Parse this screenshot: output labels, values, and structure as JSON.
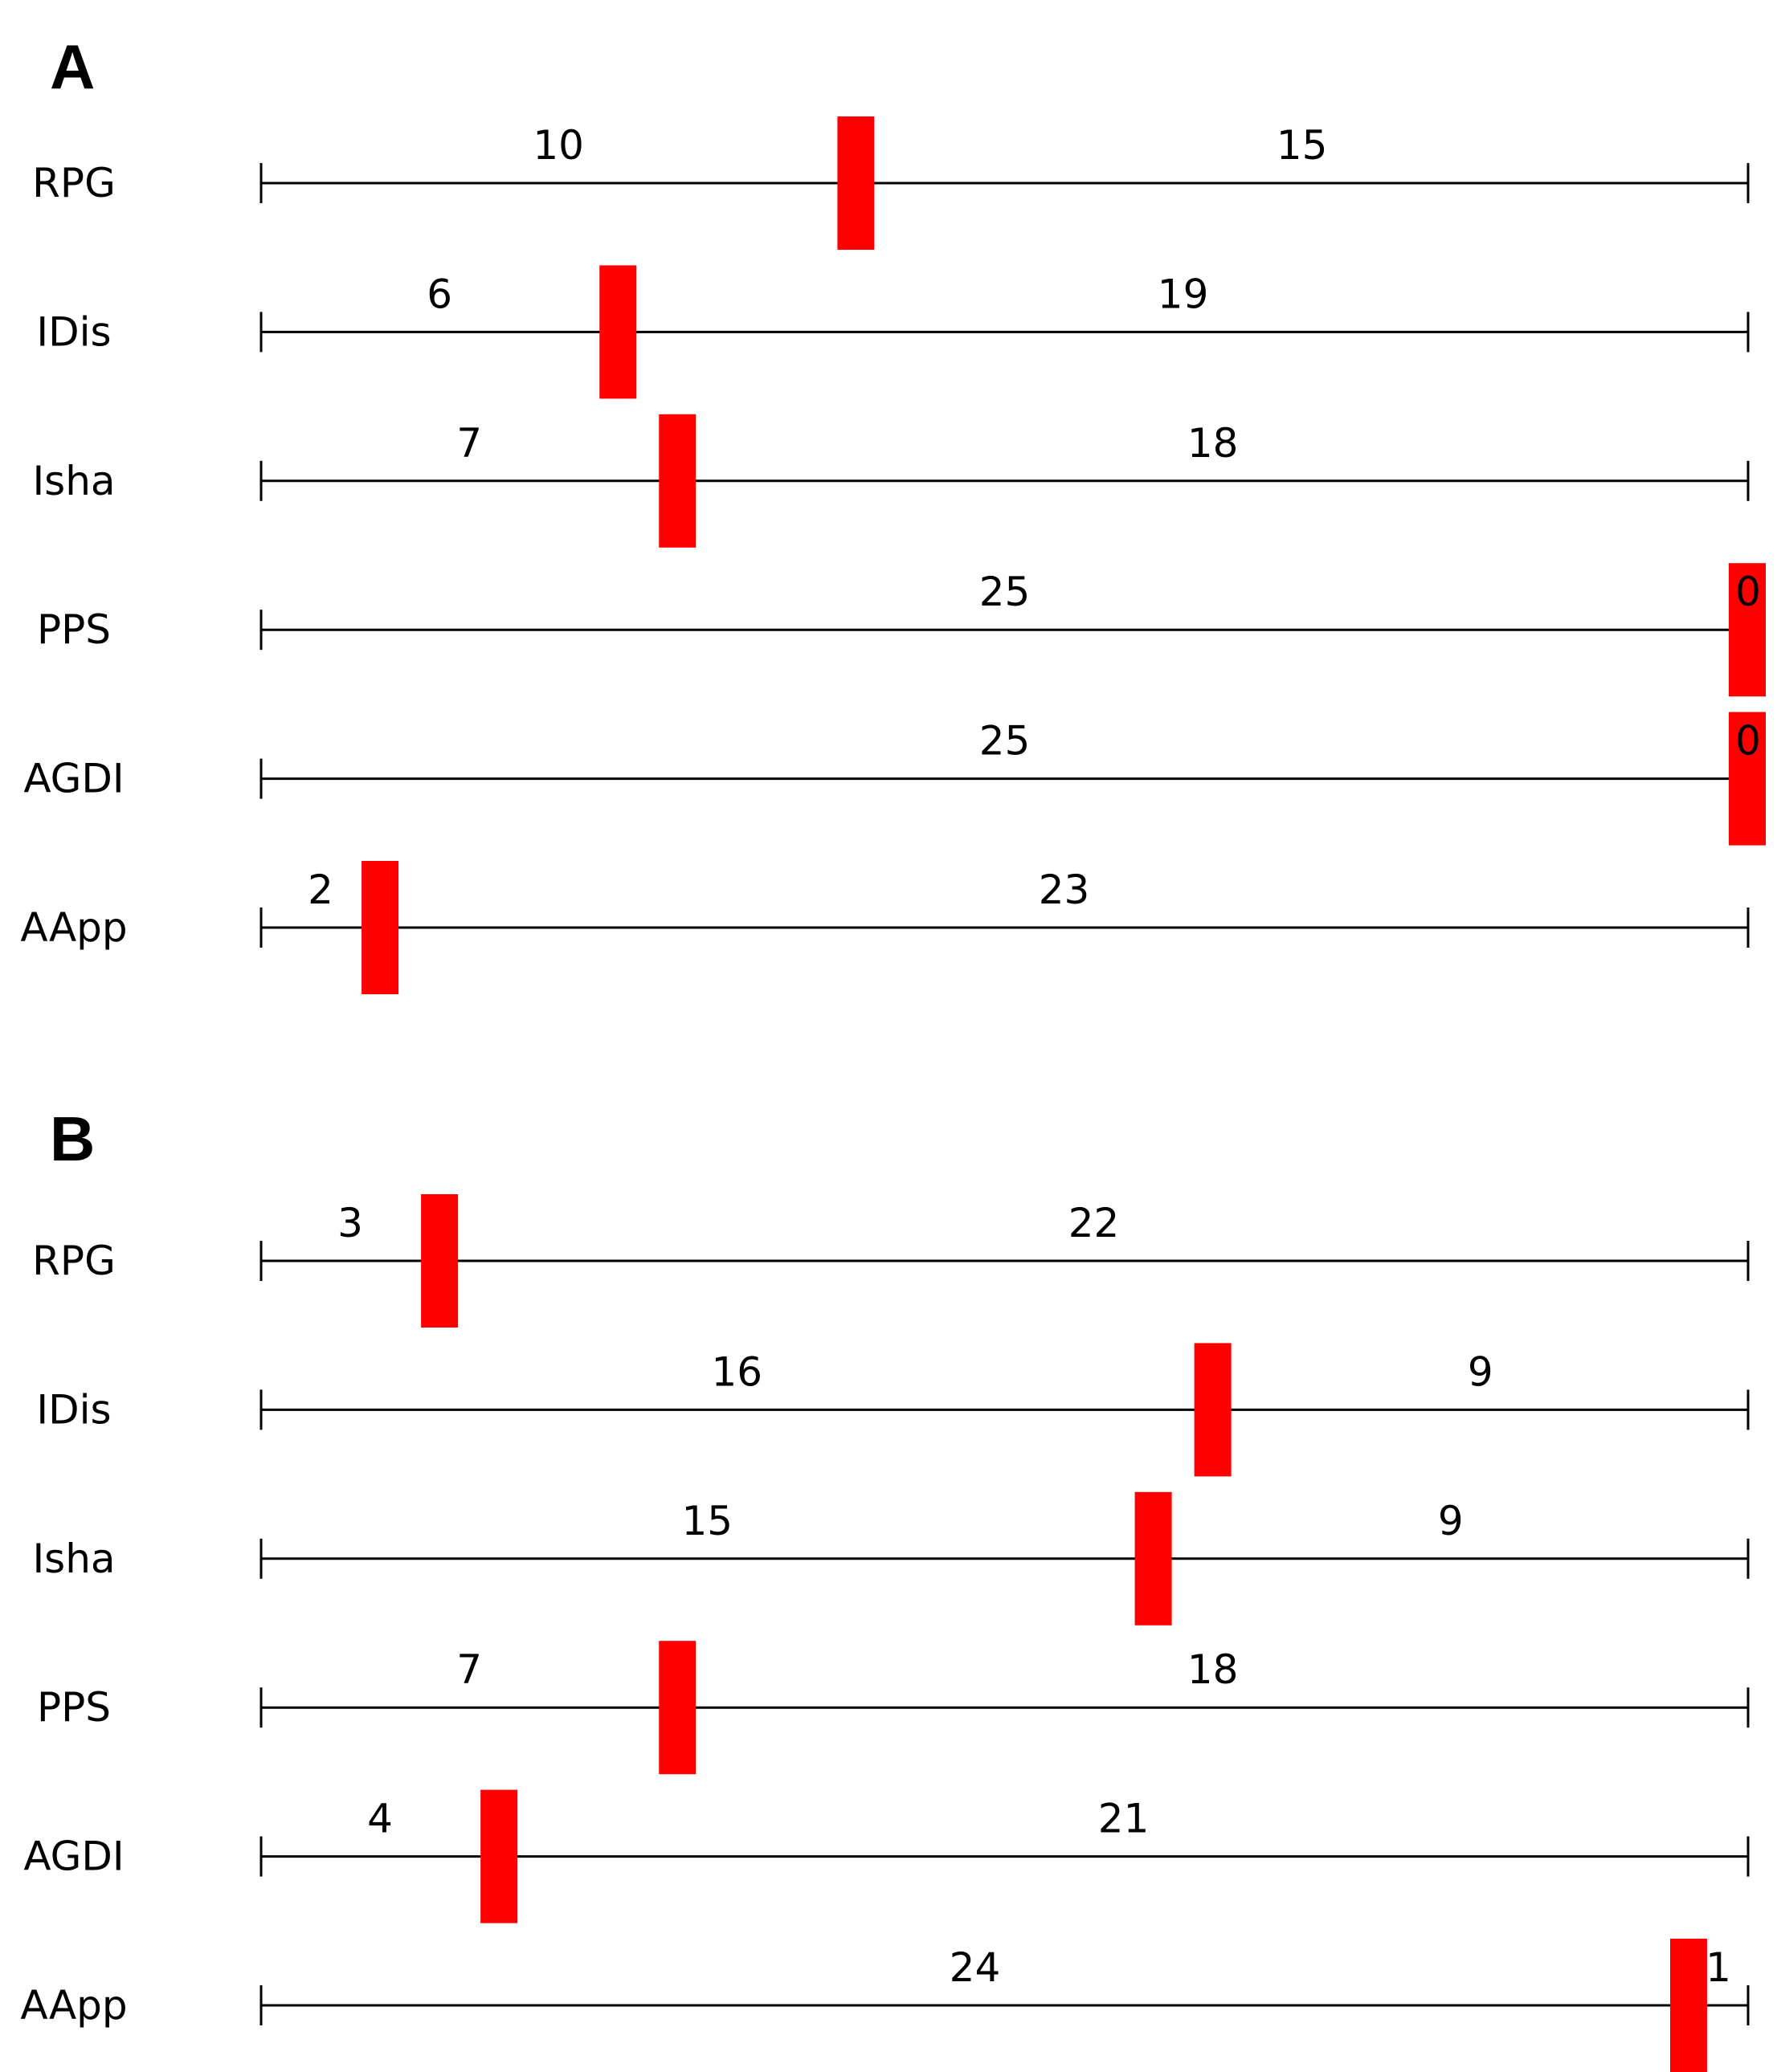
{
  "chart_data": [
    {
      "type": "bar",
      "panel": "A",
      "xlim": [
        0,
        25
      ],
      "marker_color": "#ff0000",
      "rows": [
        {
          "label": "RPG",
          "left": 10,
          "right": 15
        },
        {
          "label": "IDis",
          "left": 6,
          "right": 19
        },
        {
          "label": "Isha",
          "left": 7,
          "right": 18
        },
        {
          "label": "PPS",
          "left": 25,
          "right": 0
        },
        {
          "label": "AGDI",
          "left": 25,
          "right": 0
        },
        {
          "label": "AApp",
          "left": 2,
          "right": 23
        }
      ]
    },
    {
      "type": "bar",
      "panel": "B",
      "xlim": [
        0,
        25
      ],
      "marker_color": "#ff0000",
      "rows": [
        {
          "label": "RPG",
          "left": 3,
          "right": 22
        },
        {
          "label": "IDis",
          "left": 16,
          "right": 9
        },
        {
          "label": "Isha",
          "left": 15,
          "right": 9
        },
        {
          "label": "PPS",
          "left": 7,
          "right": 18
        },
        {
          "label": "AGDI",
          "left": 4,
          "right": 21
        },
        {
          "label": "AApp",
          "left": 24,
          "right": 1
        }
      ]
    }
  ]
}
